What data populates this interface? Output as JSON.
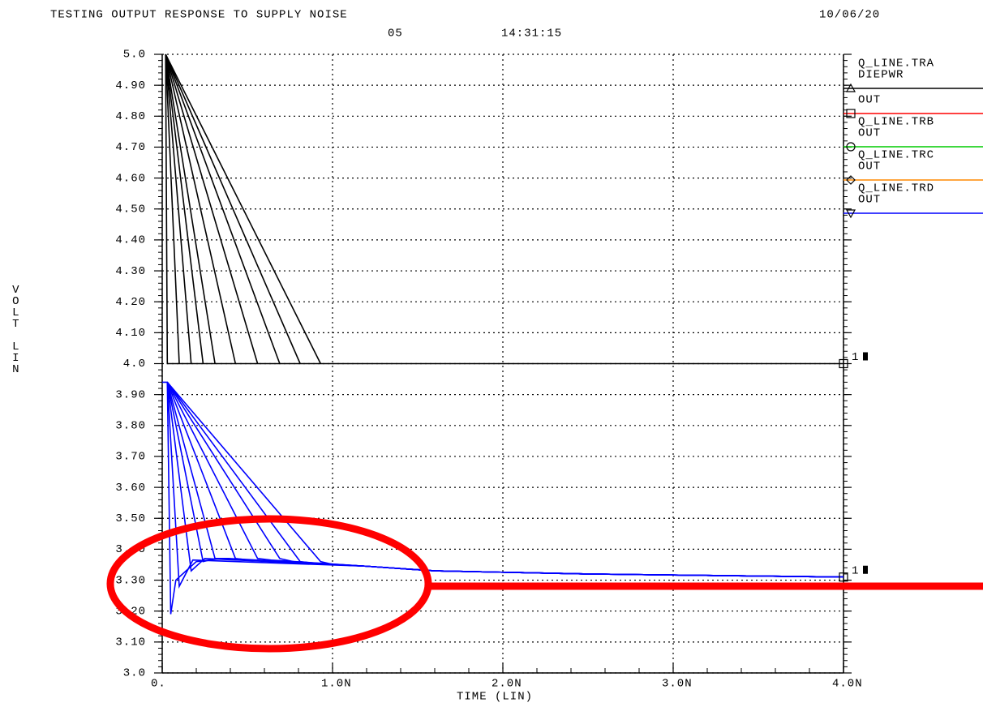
{
  "chart_data": {
    "type": "line",
    "title": "TESTING OUTPUT RESPONSE TO SUPPLY NOISE",
    "run_number": "05",
    "time": "14:31:15",
    "date": "10/06/20",
    "x_label": "TIME (LIN)",
    "y_label": "VOLT  LIN",
    "xlim": [
      0,
      4
    ],
    "ylim": [
      3,
      5
    ],
    "xticks": [
      {
        "value": 0,
        "label": "0."
      },
      {
        "value": 1,
        "label": "1.0N"
      },
      {
        "value": 2,
        "label": "2.0N"
      },
      {
        "value": 3,
        "label": "3.0N"
      },
      {
        "value": 4,
        "label": "4.0N"
      }
    ],
    "yticks": [
      {
        "value": 5,
        "label": "5.0"
      },
      {
        "value": 4.9,
        "label": "4.90"
      },
      {
        "value": 4.8,
        "label": "4.80"
      },
      {
        "value": 4.7,
        "label": "4.70"
      },
      {
        "value": 4.6,
        "label": "4.60"
      },
      {
        "value": 4.5,
        "label": "4.50"
      },
      {
        "value": 4.4,
        "label": "4.40"
      },
      {
        "value": 4.3,
        "label": "4.30"
      },
      {
        "value": 4.2,
        "label": "4.20"
      },
      {
        "value": 4.1,
        "label": "4.10"
      },
      {
        "value": 4,
        "label": "4.0"
      },
      {
        "value": 3.9,
        "label": "3.90"
      },
      {
        "value": 3.8,
        "label": "3.80"
      },
      {
        "value": 3.7,
        "label": "3.70"
      },
      {
        "value": 3.6,
        "label": "3.60"
      },
      {
        "value": 3.5,
        "label": "3.50"
      },
      {
        "value": 3.4,
        "label": "3.40"
      },
      {
        "value": 3.3,
        "label": "3.30"
      },
      {
        "value": 3.2,
        "label": "3.20"
      },
      {
        "value": 3.1,
        "label": "3.10"
      },
      {
        "value": 3,
        "label": "3.0"
      }
    ],
    "grid": true,
    "legend": [
      {
        "header": "Q_LINE.TRA",
        "name": "DIEPWR",
        "color": "#000000",
        "marker": "triangle"
      },
      {
        "name": "OUT",
        "color": "#ff0000",
        "marker": "square"
      },
      {
        "header": "Q_LINE.TRB",
        "name": "OUT",
        "color": "#00cc00",
        "marker": "circle"
      },
      {
        "header": "Q_LINE.TRC",
        "name": "OUT",
        "color": "#ff8800",
        "marker": "diamond"
      },
      {
        "header": "Q_LINE.TRD",
        "name": "OUT",
        "color": "#0000ff",
        "marker": "triangle-down"
      }
    ],
    "annotations": [
      {
        "text": "1",
        "y": 4.0
      },
      {
        "text": "1",
        "y": 3.31
      }
    ],
    "series": [
      {
        "color": "#000000",
        "x": [
          0.02,
          0.03,
          4.0
        ],
        "values": [
          5.0,
          4.0,
          4.0
        ]
      },
      {
        "color": "#000000",
        "x": [
          0.02,
          0.1
        ],
        "values": [
          5.0,
          4.0
        ]
      },
      {
        "color": "#000000",
        "x": [
          0.02,
          0.17
        ],
        "values": [
          5.0,
          4.0
        ]
      },
      {
        "color": "#000000",
        "x": [
          0.02,
          0.24
        ],
        "values": [
          5.0,
          4.0
        ]
      },
      {
        "color": "#000000",
        "x": [
          0.02,
          0.31
        ],
        "values": [
          5.0,
          4.0
        ]
      },
      {
        "color": "#000000",
        "x": [
          0.02,
          0.43
        ],
        "values": [
          5.0,
          4.0
        ]
      },
      {
        "color": "#000000",
        "x": [
          0.02,
          0.56
        ],
        "values": [
          5.0,
          4.0
        ]
      },
      {
        "color": "#000000",
        "x": [
          0.02,
          0.69
        ],
        "values": [
          5.0,
          4.0
        ]
      },
      {
        "color": "#000000",
        "x": [
          0.02,
          0.81
        ],
        "values": [
          5.0,
          4.0
        ]
      },
      {
        "color": "#000000",
        "x": [
          0.02,
          0.93
        ],
        "values": [
          5.0,
          4.0
        ]
      },
      {
        "color": "#0000ff",
        "x": [
          0,
          0.03,
          0.05,
          0.08,
          0.2,
          0.35,
          1.2,
          1.6,
          2.5,
          4.0
        ],
        "values": [
          3.94,
          3.94,
          3.19,
          3.3,
          3.36,
          3.37,
          3.345,
          3.33,
          3.32,
          3.31
        ]
      },
      {
        "color": "#0000ff",
        "x": [
          0.03,
          0.1,
          0.18,
          1.2,
          1.6,
          2.5,
          4.0
        ],
        "values": [
          3.94,
          3.28,
          3.365,
          3.345,
          3.33,
          3.32,
          3.31
        ]
      },
      {
        "color": "#0000ff",
        "x": [
          0.03,
          0.17,
          0.25,
          1.2,
          1.6,
          2.5,
          4.0
        ],
        "values": [
          3.94,
          3.33,
          3.37,
          3.345,
          3.33,
          3.32,
          3.31
        ]
      },
      {
        "color": "#0000ff",
        "x": [
          0.03,
          0.24,
          0.32,
          1.2,
          1.6,
          2.5,
          4.0
        ],
        "values": [
          3.94,
          3.36,
          3.37,
          3.345,
          3.33,
          3.32,
          3.31
        ]
      },
      {
        "color": "#0000ff",
        "x": [
          0.03,
          0.31,
          0.39,
          1.2,
          1.6,
          2.5,
          4.0
        ],
        "values": [
          3.94,
          3.37,
          3.37,
          3.345,
          3.33,
          3.32,
          3.31
        ]
      },
      {
        "color": "#0000ff",
        "x": [
          0.03,
          0.43,
          0.51,
          1.2,
          1.6,
          2.5,
          4.0
        ],
        "values": [
          3.94,
          3.37,
          3.365,
          3.345,
          3.33,
          3.32,
          3.31
        ]
      },
      {
        "color": "#0000ff",
        "x": [
          0.03,
          0.56,
          0.64,
          1.2,
          1.6,
          2.5,
          4.0
        ],
        "values": [
          3.94,
          3.37,
          3.365,
          3.345,
          3.33,
          3.32,
          3.31
        ]
      },
      {
        "color": "#0000ff",
        "x": [
          0.03,
          0.69,
          0.77,
          1.2,
          1.6,
          2.5,
          4.0
        ],
        "values": [
          3.94,
          3.37,
          3.36,
          3.345,
          3.33,
          3.32,
          3.31
        ]
      },
      {
        "color": "#0000ff",
        "x": [
          0.03,
          0.81,
          0.89,
          1.2,
          1.6,
          2.5,
          4.0
        ],
        "values": [
          3.94,
          3.36,
          3.355,
          3.345,
          3.33,
          3.32,
          3.31
        ]
      },
      {
        "color": "#0000ff",
        "x": [
          0.03,
          0.93,
          1.01,
          1.2,
          1.6,
          2.5,
          4.0
        ],
        "values": [
          3.94,
          3.36,
          3.35,
          3.345,
          3.33,
          3.32,
          3.31
        ]
      }
    ]
  }
}
